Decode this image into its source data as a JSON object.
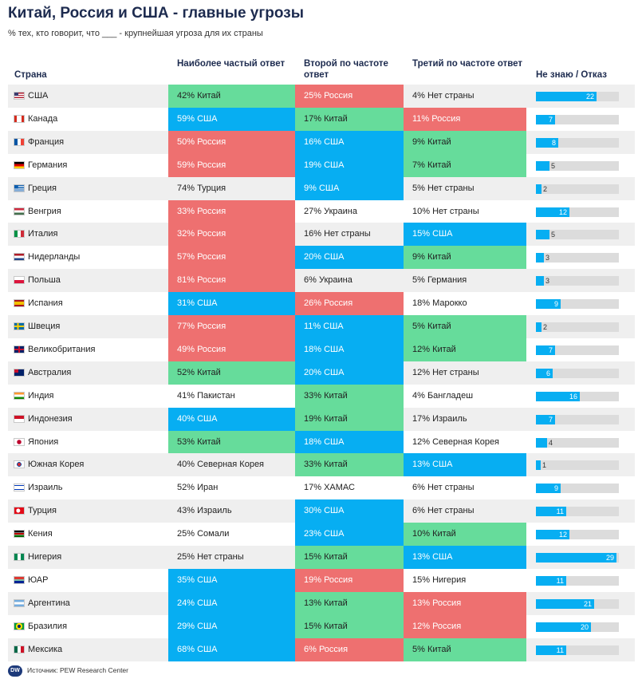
{
  "title": "Китай, Россия и США - главные угрозы",
  "subtitle": "% тех, кто говорит, что ___ - крупнейшая угроза для их страны",
  "headers": {
    "country": "Страна",
    "c1": "Наиболее частый ответ",
    "c2": "Второй по частоте ответ",
    "c3": "Третий по частоте ответ",
    "dk": "Не знаю / Отказ"
  },
  "colors": {
    "green": "#66dc9b",
    "red": "#ee7070",
    "blue": "#07aef2",
    "bar_track": "#dcdcdc",
    "row_alt": "#efefef"
  },
  "source": "Источник: PEW Research Center",
  "logo_text": "DW",
  "chart_data": {
    "type": "table",
    "title": "Китай, Россия и США - главные угрозы",
    "dk_max": 30,
    "rows": [
      {
        "country": "США",
        "flag": "us",
        "c1": "42% Китай",
        "c1c": "green",
        "c2": "25% Россия",
        "c2c": "red",
        "c3": "4% Нет страны",
        "c3c": "none",
        "dk": 22
      },
      {
        "country": "Канада",
        "flag": "ca",
        "c1": "59% США",
        "c1c": "blue",
        "c2": "17% Китай",
        "c2c": "green",
        "c3": "11% Россия",
        "c3c": "red",
        "dk": 7
      },
      {
        "country": "Франция",
        "flag": "fr",
        "c1": "50% Россия",
        "c1c": "red",
        "c2": "16% США",
        "c2c": "blue",
        "c3": "9% Китай",
        "c3c": "green",
        "dk": 8
      },
      {
        "country": "Германия",
        "flag": "de",
        "c1": "59% Россия",
        "c1c": "red",
        "c2": "19% США",
        "c2c": "blue",
        "c3": "7% Китай",
        "c3c": "green",
        "dk": 5
      },
      {
        "country": "Греция",
        "flag": "gr",
        "c1": "74% Турция",
        "c1c": "none",
        "c2": "9% США",
        "c2c": "blue",
        "c3": "5% Нет страны",
        "c3c": "none",
        "dk": 2
      },
      {
        "country": "Венгрия",
        "flag": "hu",
        "c1": "33% Россия",
        "c1c": "red",
        "c2": "27% Украина",
        "c2c": "none",
        "c3": "10% Нет страны",
        "c3c": "none",
        "dk": 12
      },
      {
        "country": "Италия",
        "flag": "it",
        "c1": "32% Россия",
        "c1c": "red",
        "c2": "16% Нет страны",
        "c2c": "none",
        "c3": "15% США",
        "c3c": "blue",
        "dk": 5
      },
      {
        "country": "Нидерланды",
        "flag": "nl",
        "c1": "57% Россия",
        "c1c": "red",
        "c2": "20% США",
        "c2c": "blue",
        "c3": "9% Китай",
        "c3c": "green",
        "dk": 3
      },
      {
        "country": "Польша",
        "flag": "pl",
        "c1": "81% Россия",
        "c1c": "red",
        "c2": "6% Украина",
        "c2c": "none",
        "c3": "5% Германия",
        "c3c": "none",
        "dk": 3
      },
      {
        "country": "Испания",
        "flag": "es",
        "c1": "31% США",
        "c1c": "blue",
        "c2": "26% Россия",
        "c2c": "red",
        "c3": "18% Марокко",
        "c3c": "none",
        "dk": 9
      },
      {
        "country": "Швеция",
        "flag": "se",
        "c1": "77% Россия",
        "c1c": "red",
        "c2": "11% США",
        "c2c": "blue",
        "c3": "5% Китай",
        "c3c": "green",
        "dk": 2
      },
      {
        "country": "Великобритания",
        "flag": "gb",
        "c1": "49% Россия",
        "c1c": "red",
        "c2": "18% США",
        "c2c": "blue",
        "c3": "12% Китай",
        "c3c": "green",
        "dk": 7
      },
      {
        "country": "Австралия",
        "flag": "au",
        "c1": "52% Китай",
        "c1c": "green",
        "c2": "20% США",
        "c2c": "blue",
        "c3": "12% Нет страны",
        "c3c": "none",
        "dk": 6
      },
      {
        "country": "Индия",
        "flag": "in",
        "c1": "41% Пакистан",
        "c1c": "none",
        "c2": "33% Китай",
        "c2c": "green",
        "c3": "4% Бангладеш",
        "c3c": "none",
        "dk": 16
      },
      {
        "country": "Индонезия",
        "flag": "id",
        "c1": "40% США",
        "c1c": "blue",
        "c2": "19% Китай",
        "c2c": "green",
        "c3": "17% Израиль",
        "c3c": "none",
        "dk": 7
      },
      {
        "country": "Япония",
        "flag": "jp",
        "c1": "53% Китай",
        "c1c": "green",
        "c2": "18% США",
        "c2c": "blue",
        "c3": "12% Северная Корея",
        "c3c": "none",
        "dk": 4
      },
      {
        "country": "Южная Корея",
        "flag": "kr",
        "c1": "40% Северная Корея",
        "c1c": "none",
        "c2": "33% Китай",
        "c2c": "green",
        "c3": "13% США",
        "c3c": "blue",
        "dk": 1
      },
      {
        "country": "Израиль",
        "flag": "il",
        "c1": "52% Иран",
        "c1c": "none",
        "c2": "17% ХАМАС",
        "c2c": "none",
        "c3": "6% Нет страны",
        "c3c": "none",
        "dk": 9
      },
      {
        "country": "Турция",
        "flag": "tr",
        "c1": "43% Израиль",
        "c1c": "none",
        "c2": "30% США",
        "c2c": "blue",
        "c3": "6% Нет страны",
        "c3c": "none",
        "dk": 11
      },
      {
        "country": "Кения",
        "flag": "ke",
        "c1": "25% Сомали",
        "c1c": "none",
        "c2": "23% США",
        "c2c": "blue",
        "c3": "10% Китай",
        "c3c": "green",
        "dk": 12
      },
      {
        "country": "Нигерия",
        "flag": "ng",
        "c1": "25% Нет страны",
        "c1c": "none",
        "c2": "15% Китай",
        "c2c": "green",
        "c3": "13% США",
        "c3c": "blue",
        "dk": 29
      },
      {
        "country": "ЮАР",
        "flag": "za",
        "c1": "35% США",
        "c1c": "blue",
        "c2": "19% Россия",
        "c2c": "red",
        "c3": "15% Нигерия",
        "c3c": "none",
        "dk": 11
      },
      {
        "country": "Аргентина",
        "flag": "ar",
        "c1": "24% США",
        "c1c": "blue",
        "c2": "13% Китай",
        "c2c": "green",
        "c3": "13% Россия",
        "c3c": "red",
        "dk": 21
      },
      {
        "country": "Бразилия",
        "flag": "br",
        "c1": "29% США",
        "c1c": "blue",
        "c2": "15% Китай",
        "c2c": "green",
        "c3": "12% Россия",
        "c3c": "red",
        "dk": 20
      },
      {
        "country": "Мексика",
        "flag": "mx",
        "c1": "68% США",
        "c1c": "blue",
        "c2": "6% Россия",
        "c2c": "red",
        "c3": "5% Китай",
        "c3c": "green",
        "dk": 11
      }
    ]
  }
}
